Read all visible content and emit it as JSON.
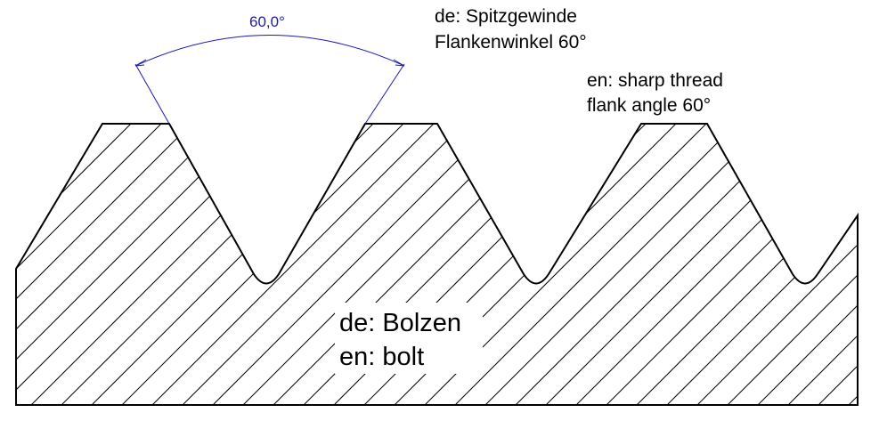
{
  "dimension": {
    "angle_text": "60,0°",
    "color": "#1a1ab4"
  },
  "labels": {
    "de_thread_line1": "de: Spitzgewinde",
    "de_thread_line2": "Flankenwinkel 60°",
    "en_thread_line1": "en: sharp thread",
    "en_thread_line2": "flank angle 60°",
    "de_part": "de: Bolzen",
    "en_part": "en: bolt"
  }
}
